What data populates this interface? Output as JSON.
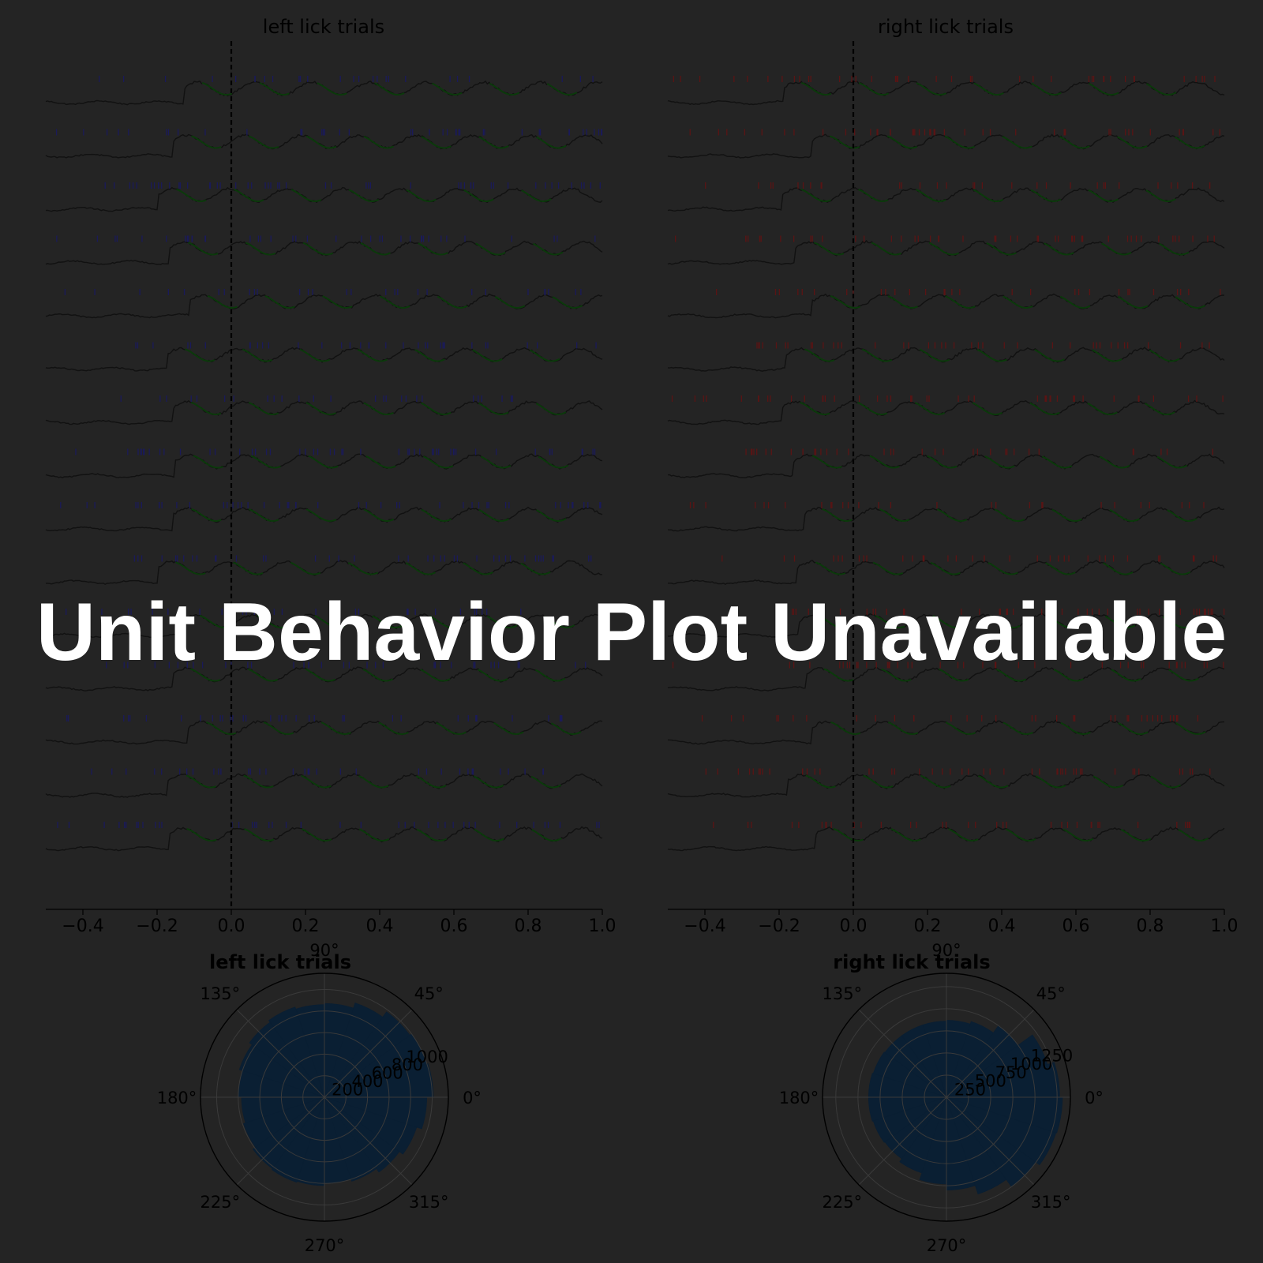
{
  "overlay": {
    "message": "Unit Behavior Plot Unavailable"
  },
  "colors": {
    "background": "#242424",
    "trace_still": "#111111",
    "trace_licking": "#0b3a0b",
    "left_spikes": "#1a1a5a",
    "right_spikes": "#5a1414",
    "polar_fill": "#0a1f33",
    "text": "#000000",
    "axis": "#000000",
    "grid": "#3a3a3a"
  },
  "chart_data": [
    {
      "type": "line",
      "title": "left lick trials",
      "series_kind": "tongue trace with spike raster, 15 trials",
      "x_ticks": [
        -0.4,
        -0.2,
        0.0,
        0.2,
        0.4,
        0.6,
        0.8,
        1.0
      ],
      "x_tick_labels": [
        "−0.4",
        "−0.2",
        "0.0",
        "0.2",
        "0.4",
        "0.6",
        "0.8",
        "1.0"
      ],
      "xlim": [
        -0.5,
        1.0
      ],
      "event_line_x": 0.0,
      "n_trials": 15,
      "spike_color_key": "left_spikes"
    },
    {
      "type": "line",
      "title": "right lick trials",
      "series_kind": "tongue trace with spike raster, 15 trials",
      "x_ticks": [
        -0.4,
        -0.2,
        0.0,
        0.2,
        0.4,
        0.6,
        0.8,
        1.0
      ],
      "x_tick_labels": [
        "−0.4",
        "−0.2",
        "0.0",
        "0.2",
        "0.4",
        "0.6",
        "0.8",
        "1.0"
      ],
      "xlim": [
        -0.5,
        1.0
      ],
      "event_line_x": 0.0,
      "n_trials": 15,
      "spike_color_key": "right_spikes"
    },
    {
      "type": "polar-bar",
      "title": "left lick trials",
      "angle_labels": [
        "0°",
        "45°",
        "90°",
        "135°",
        "180°",
        "225°",
        "270°",
        "315°"
      ],
      "radial_ticks": [
        200,
        400,
        600,
        800,
        1000
      ],
      "radial_tick_labels": [
        "200",
        "400",
        "600",
        "800",
        "1000"
      ],
      "rmax": 1150,
      "bin_count": 20,
      "bin_values": [
        1010,
        1000,
        980,
        920,
        870,
        860,
        880,
        860,
        830,
        800,
        770,
        790,
        820,
        830,
        820,
        800,
        820,
        860,
        900,
        950
      ]
    },
    {
      "type": "polar-bar",
      "title": "right lick trials",
      "angle_labels": [
        "0°",
        "45°",
        "90°",
        "135°",
        "180°",
        "225°",
        "270°",
        "315°"
      ],
      "radial_ticks": [
        250,
        500,
        750,
        1000,
        1250
      ],
      "radial_tick_labels": [
        "250",
        "500",
        "750",
        "1000",
        "1250"
      ],
      "rmax": 1400,
      "bin_count": 20,
      "bin_values": [
        1280,
        1200,
        1000,
        900,
        870,
        860,
        860,
        860,
        870,
        880,
        880,
        870,
        860,
        900,
        980,
        1050,
        1150,
        1250,
        1300,
        1310
      ]
    }
  ]
}
